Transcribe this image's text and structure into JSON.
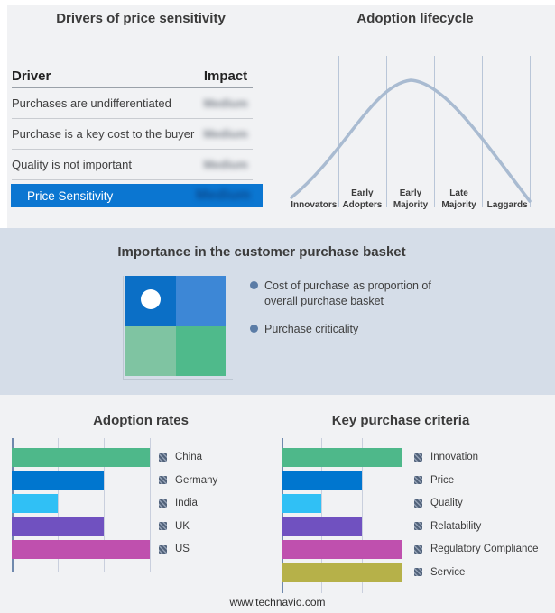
{
  "footer": {
    "text": "www.technavio.com"
  },
  "chart_data": [
    {
      "id": "drivers_of_price_sensitivity",
      "type": "table",
      "title": "Drivers of price sensitivity",
      "columns": [
        "Driver",
        "Impact"
      ],
      "rows": [
        [
          "Purchases are undifferentiated",
          "Medium"
        ],
        [
          "Purchase is a key cost to the buyer",
          "Medium"
        ],
        [
          "Quality is not important",
          "Medium"
        ]
      ],
      "highlighted_row": [
        "Price Sensitivity",
        "Medium"
      ],
      "impact_values_blurred": true,
      "highlight_color": "#0b76d1"
    },
    {
      "id": "adoption_lifecycle",
      "type": "line",
      "title": "Adoption lifecycle",
      "categories": [
        "Innovators",
        "Early Adopters",
        "Early Majority",
        "Late Majority",
        "Laggards"
      ],
      "shape": "bell curve peaking in Early Majority",
      "curve_color": "#a9bbd1",
      "gridline_color": "#b9c6d8"
    },
    {
      "id": "importance_in_purchase_basket",
      "type": "quadrant",
      "title": "Importance in the customer purchase basket",
      "legend": [
        "Cost of purchase as proportion of overall purchase basket",
        "Purchase criticality"
      ],
      "quadrant_colors": [
        "#0b6fc6",
        "#3d87d6",
        "#7fc4a2",
        "#4fba8b"
      ],
      "marker": "white dot in top-left quadrant",
      "band_background": "#d5dde8"
    },
    {
      "id": "adoption_rates",
      "type": "bar",
      "orientation": "horizontal",
      "title": "Adoption rates",
      "categories": [
        "China",
        "Germany",
        "India",
        "UK",
        "US"
      ],
      "values": [
        3,
        2,
        1,
        2,
        3
      ],
      "xlim": [
        0,
        3
      ],
      "gridlines": true,
      "legend_position": "right",
      "colors": [
        "#4eb88a",
        "#0076cf",
        "#30c0f5",
        "#7051c0",
        "#bf50ae"
      ]
    },
    {
      "id": "key_purchase_criteria",
      "type": "bar",
      "orientation": "horizontal",
      "title": "Key purchase criteria",
      "categories": [
        "Innovation",
        "Price",
        "Quality",
        "Relatability",
        "Regulatory Compliance",
        "Service"
      ],
      "values": [
        3,
        2,
        1,
        2,
        3,
        3
      ],
      "xlim": [
        0,
        3
      ],
      "gridlines": true,
      "legend_position": "right",
      "colors": [
        "#4eb88a",
        "#0076cf",
        "#30c0f5",
        "#7051c0",
        "#bf50ae",
        "#b6b149"
      ]
    }
  ]
}
